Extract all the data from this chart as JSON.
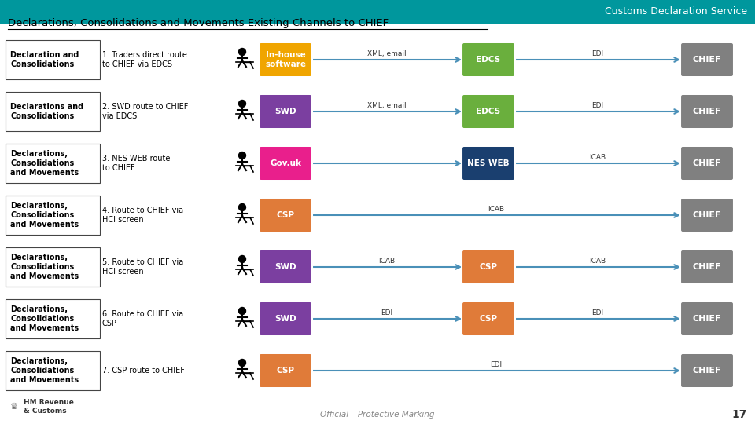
{
  "title_bar_color": "#00979D",
  "title_bar_text": "Customs Declaration Service",
  "title_bar_text_color": "#FFFFFF",
  "title_bar_height": 0.055,
  "main_title": "Declarations, Consolidations and Movements Existing Channels to CHIEF",
  "main_title_color": "#000000",
  "bg_color": "#FFFFFF",
  "rows": [
    {
      "left_label": "Declaration and\nConsolidations",
      "route_label": "1. Traders direct route\nto CHIEF via EDCS",
      "box1": {
        "text": "In-house\nsoftware",
        "color": "#F0A500",
        "text_color": "#FFFFFF"
      },
      "arrow1_label": "XML, email",
      "box2": {
        "text": "EDCS",
        "color": "#6AAF3D",
        "text_color": "#FFFFFF"
      },
      "arrow2_label": "EDI",
      "box3": {
        "text": "CHIEF",
        "color": "#808080",
        "text_color": "#FFFFFF"
      }
    },
    {
      "left_label": "Declarations and\nConsolidations",
      "route_label": "2. SWD route to CHIEF\nvia EDCS",
      "box1": {
        "text": "SWD",
        "color": "#7B3FA0",
        "text_color": "#FFFFFF"
      },
      "arrow1_label": "XML, email",
      "box2": {
        "text": "EDCS",
        "color": "#6AAF3D",
        "text_color": "#FFFFFF"
      },
      "arrow2_label": "EDI",
      "box3": {
        "text": "CHIEF",
        "color": "#808080",
        "text_color": "#FFFFFF"
      }
    },
    {
      "left_label": "Declarations,\nConsolidations\nand Movements",
      "route_label": "3. NES WEB route\nto CHIEF",
      "box1": {
        "text": "Gov.uk",
        "color": "#E91F8C",
        "text_color": "#FFFFFF"
      },
      "arrow1_label": "",
      "box2": {
        "text": "NES WEB",
        "color": "#1A3F6F",
        "text_color": "#FFFFFF"
      },
      "arrow2_label": "ICAB",
      "box3": {
        "text": "CHIEF",
        "color": "#808080",
        "text_color": "#FFFFFF"
      }
    },
    {
      "left_label": "Declarations,\nConsolidations\nand Movements",
      "route_label": "4. Route to CHIEF via\nHCI screen",
      "box1": {
        "text": "CSP",
        "color": "#E07B39",
        "text_color": "#FFFFFF"
      },
      "arrow1_label": "ICAB",
      "box2": null,
      "arrow2_label": "",
      "box3": {
        "text": "CHIEF",
        "color": "#808080",
        "text_color": "#FFFFFF"
      }
    },
    {
      "left_label": "Declarations,\nConsolidations\nand Movements",
      "route_label": "5. Route to CHIEF via\nHCI screen",
      "box1": {
        "text": "SWD",
        "color": "#7B3FA0",
        "text_color": "#FFFFFF"
      },
      "arrow1_label": "ICAB",
      "box2": {
        "text": "CSP",
        "color": "#E07B39",
        "text_color": "#FFFFFF"
      },
      "arrow2_label": "ICAB",
      "box3": {
        "text": "CHIEF",
        "color": "#808080",
        "text_color": "#FFFFFF"
      }
    },
    {
      "left_label": "Declarations,\nConsolidations\nand Movements",
      "route_label": "6. Route to CHIEF via\nCSP",
      "box1": {
        "text": "SWD",
        "color": "#7B3FA0",
        "text_color": "#FFFFFF"
      },
      "arrow1_label": "EDI",
      "box2": {
        "text": "CSP",
        "color": "#E07B39",
        "text_color": "#FFFFFF"
      },
      "arrow2_label": "EDI",
      "box3": {
        "text": "CHIEF",
        "color": "#808080",
        "text_color": "#FFFFFF"
      }
    },
    {
      "left_label": "Declarations,\nConsolidations\nand Movements",
      "route_label": "7. CSP route to CHIEF",
      "box1": {
        "text": "CSP",
        "color": "#E07B39",
        "text_color": "#FFFFFF"
      },
      "arrow1_label": "EDI",
      "box2": null,
      "arrow2_label": "",
      "box3": {
        "text": "CHIEF",
        "color": "#808080",
        "text_color": "#FFFFFF"
      }
    }
  ],
  "footer_text": "Official – Protective Marking",
  "page_number": "17",
  "arrow_color": "#4A90B8",
  "left_box_border": "#333333"
}
